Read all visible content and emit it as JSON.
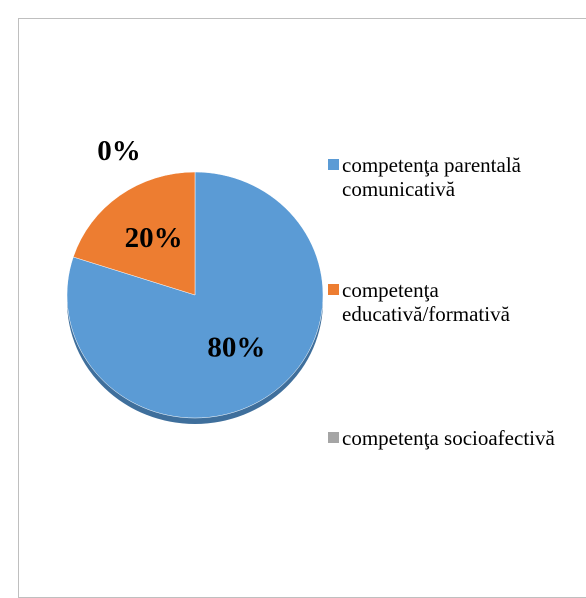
{
  "chart_data": {
    "type": "pie",
    "categories": [
      "competenţa parentală comunicativă",
      "competenţa educativă/formativă",
      "competenţa socioafectivă"
    ],
    "values": [
      80,
      20,
      0
    ],
    "value_labels": [
      "80%",
      "20%",
      "0%"
    ],
    "colors": [
      "#5b9bd5",
      "#ed7d31",
      "#a5a5a5"
    ],
    "legend": "right"
  }
}
